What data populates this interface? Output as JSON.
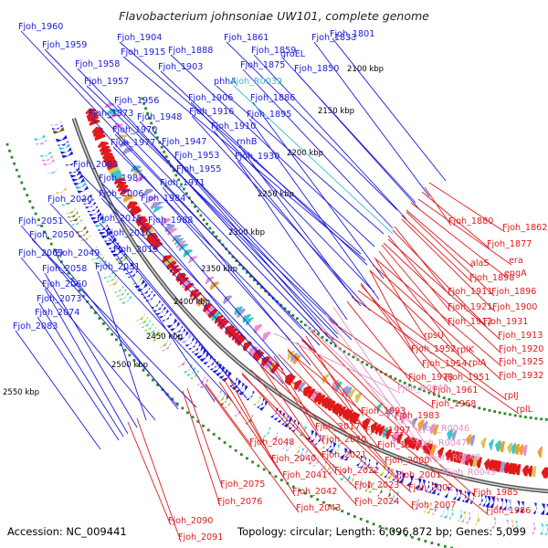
{
  "title": "Flavobacterium johnsoniae UW101, complete genome",
  "accession_label": "Accession: NC_009441",
  "stats_label": "Topology: circular; Length: 6,096,872 bp; Genes: 5,099",
  "colors": {
    "forward_gene": "#1a1adb",
    "reverse_gene": "#e01a1a",
    "rna": "#e48fc9",
    "trna": "#38b8d8",
    "backbone": "#8a8a8a",
    "gc_skew": "#2a8a2a"
  },
  "kbp_ticks": [
    "2100 kbp",
    "2150 kbp",
    "2200 kbp",
    "2250 kbp",
    "2300 kbp",
    "2350 kbp",
    "2400 kbp",
    "2450 kbp",
    "2500 kbp",
    "2550 kbp"
  ],
  "forward_labels": [
    "Fjoh_1960",
    "Fjoh_1959",
    "Fjoh_1958",
    "Fjoh_1957",
    "Fjoh_1904",
    "Fjoh_1915",
    "Fjoh_1888",
    "Fjoh_1903",
    "Fjoh_1861",
    "Fjoh_1859",
    "Fjoh_1875",
    "Fjoh_1833",
    "groEL",
    "Fjoh_1850",
    "Fjoh_1801",
    "phhA",
    "Fjoh_1956",
    "Fjoh_1973",
    "Fjoh_1948",
    "Fjoh_1906",
    "Fjoh_1886",
    "Fjoh_1916",
    "Fjoh_1895",
    "Fjoh_1970",
    "Fjoh_1910",
    "Fjoh_1977",
    "Fjoh_1947",
    "rnhB",
    "Fjoh_1953",
    "Fjoh_1930",
    "Fjoh_1955",
    "Fjoh_2003",
    "Fjoh_1987",
    "Fjoh_1971",
    "Fjoh_2006",
    "Fjoh_1984",
    "Fjoh_2030",
    "Fjoh_2015",
    "Fjoh_1988",
    "Fjoh_2051",
    "Fjoh_2050",
    "Fjoh_2016",
    "Fjoh_2069",
    "Fjoh_2049",
    "Fjoh_2019",
    "Fjoh_2058",
    "Fjoh_2031",
    "Fjoh_2060",
    "Fjoh_2073",
    "Fjoh_2074",
    "Fjoh_2083"
  ],
  "trna_labels": [
    "Fjoh_R0039"
  ],
  "reverse_labels": [
    "Fjoh_1880",
    "Fjoh_1862",
    "Fjoh_1877",
    "era",
    "alaS",
    "engA",
    "Fjoh_1898",
    "Fjoh_1911",
    "Fjoh_1896",
    "Fjoh_1921",
    "Fjoh_1900",
    "Fjoh_1912",
    "Fjoh_1931",
    "rpsU",
    "Fjoh_1913",
    "Fjoh_1952",
    "rplK",
    "Fjoh_1920",
    "Fjoh_1954",
    "rplA",
    "Fjoh_1925",
    "Fjoh_1978",
    "Fjoh_1951",
    "Fjoh_1932",
    "Fjoh_1961",
    "rpIJ",
    "Fjoh_1968",
    "rplL",
    "Fjoh_1993",
    "Fjoh_1983",
    "Fjoh_2017",
    "Fjoh_1997",
    "Fjoh_2020",
    "Fjoh_1999",
    "Fjoh_2048",
    "Fjoh_2021",
    "Fjoh_2000",
    "Fjoh_2040",
    "Fjoh_2001",
    "Fjoh_2022",
    "Fjoh_2041",
    "Fjoh_2023",
    "Fjoh_2002",
    "Fjoh_1985",
    "Fjoh_2075",
    "Fjoh_2042",
    "Fjoh_2024",
    "Fjoh_2007",
    "Fjoh_1986",
    "Fjoh_2076",
    "Fjoh_2043",
    "Fjoh_2090",
    "Fjoh_2091"
  ],
  "rna_labels": [
    "Fjoh_R0045",
    "Fjoh_R0046",
    "Fjoh_R0047",
    "Fjoh_R0048",
    "Fjoh_R0049"
  ]
}
